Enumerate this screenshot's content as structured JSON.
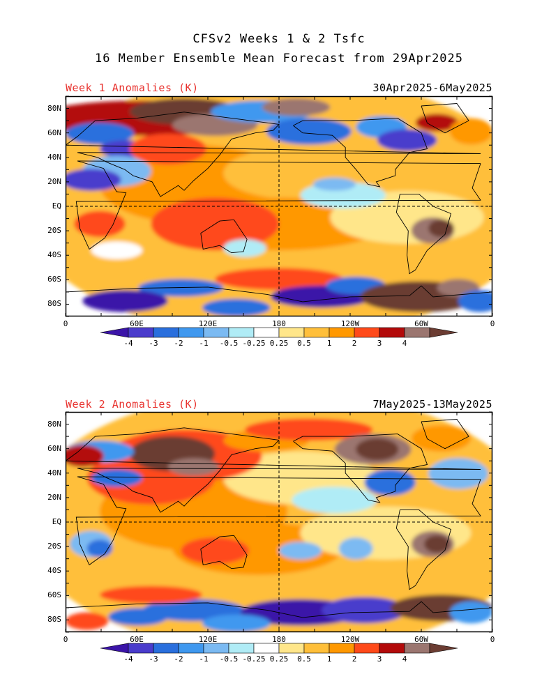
{
  "header": {
    "title_line1": "CFSv2 Weeks 1 & 2 Tsfc",
    "title_line2": "16 Member Ensemble Mean Forecast from 29Apr2025"
  },
  "panels": [
    {
      "label": "Week 1 Anomalies (K)",
      "dates": "30Apr2025-6May2025"
    },
    {
      "label": "Week 2 Anomalies (K)",
      "dates": "7May2025-13May2025"
    }
  ],
  "lat_labels": [
    "80N",
    "60N",
    "40N",
    "20N",
    "EQ",
    "20S",
    "40S",
    "60S",
    "80S"
  ],
  "lon_labels": [
    "0",
    "60E",
    "120E",
    "180",
    "120W",
    "60W",
    "0"
  ],
  "colorbar": {
    "levels": [
      "-4",
      "-3",
      "-2",
      "-1",
      "-0.5",
      "-0.25",
      "0.25",
      "0.5",
      "1",
      "2",
      "3",
      "4"
    ],
    "colors": [
      "#3b14a8",
      "#4a3ccc",
      "#2a6fdd",
      "#3f98ef",
      "#7bbaf2",
      "#b0ecf6",
      "#ffffff",
      "#ffe68a",
      "#ffbf3a",
      "#ff9800",
      "#ff4a1a",
      "#b30a0a",
      "#9b7670",
      "#6b3c32"
    ]
  }
}
